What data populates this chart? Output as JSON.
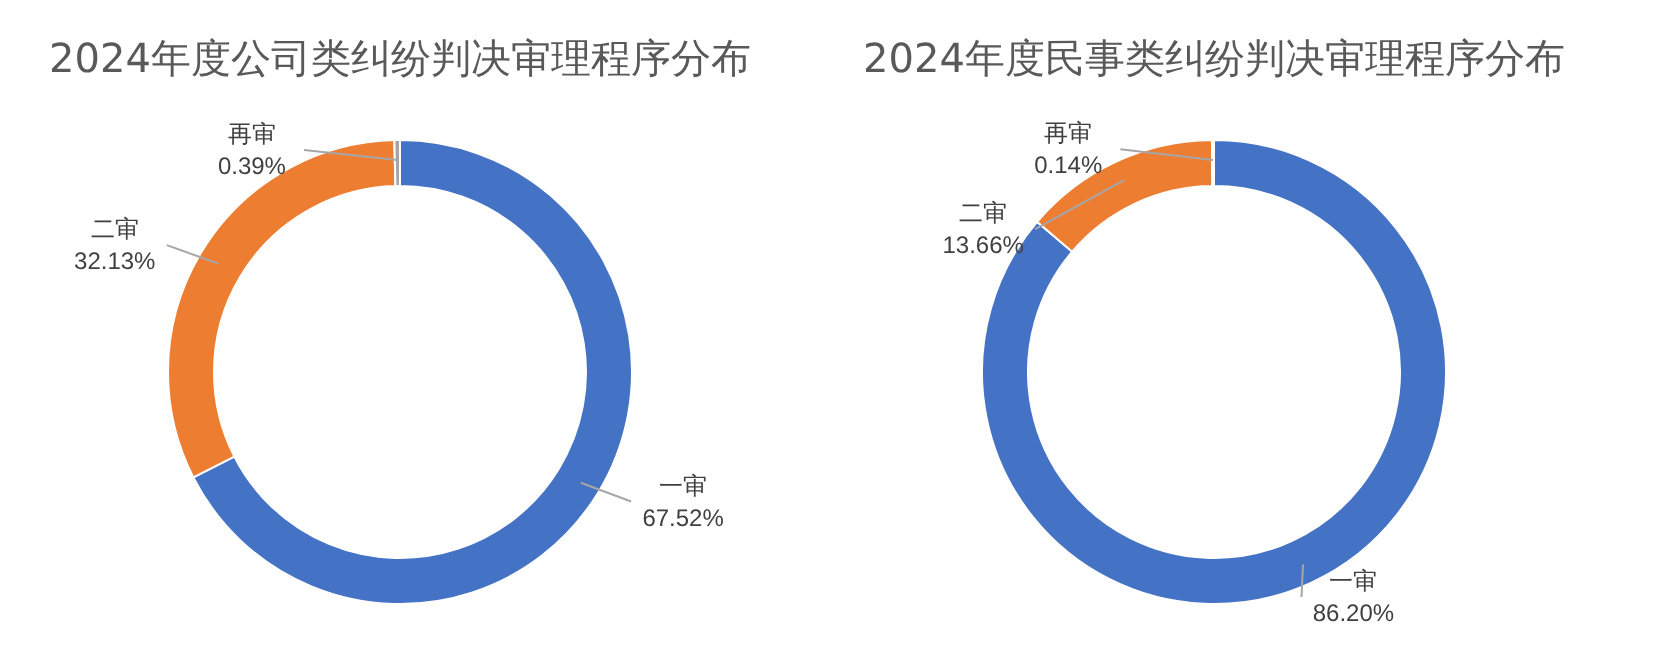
{
  "chart_data": [
    {
      "type": "donut",
      "title": "2024年度公司类纠纷判决审理程序分布",
      "categories": [
        "一审",
        "二审",
        "再审"
      ],
      "values": [
        67.52,
        32.13,
        0.39
      ],
      "value_labels": [
        "67.52%",
        "32.13%",
        "0.39%"
      ],
      "colors": [
        "#4472c4",
        "#ed7d31",
        "#a5a5a5"
      ]
    },
    {
      "type": "donut",
      "title": "2024年度民事类纠纷判决审理程序分布",
      "categories": [
        "一审",
        "二审",
        "再审"
      ],
      "values": [
        86.2,
        13.66,
        0.14
      ],
      "value_labels": [
        "86.20%",
        "13.66%",
        "0.14%"
      ],
      "colors": [
        "#4472c4",
        "#ed7d31",
        "#a5a5a5"
      ]
    }
  ]
}
